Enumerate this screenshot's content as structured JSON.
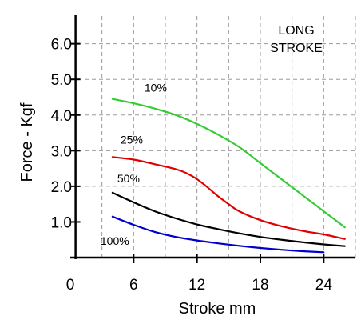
{
  "chart_data": {
    "type": "line",
    "title": "",
    "xlabel": "Stroke mm",
    "ylabel": "Force - Kgf",
    "xlim": [
      0,
      27
    ],
    "ylim": [
      0,
      6.8
    ],
    "x_ticks": [
      {
        "value": 0,
        "label": "0"
      },
      {
        "value": 6,
        "label": "6"
      },
      {
        "value": 12,
        "label": "12"
      },
      {
        "value": 18,
        "label": "18"
      },
      {
        "value": 24,
        "label": "24"
      }
    ],
    "y_ticks": [
      {
        "value": 1,
        "label": "1.0"
      },
      {
        "value": 2,
        "label": "2.0"
      },
      {
        "value": 3,
        "label": "3.0"
      },
      {
        "value": 4,
        "label": "4.0"
      },
      {
        "value": 5,
        "label": "5.0"
      },
      {
        "value": 6,
        "label": "6.0"
      }
    ],
    "grid_x": [
      3,
      6,
      9,
      12,
      15,
      18,
      21,
      24,
      27
    ],
    "grid_y": [
      1,
      2,
      3,
      4,
      5,
      6
    ],
    "grid": true,
    "annotation": [
      "LONG",
      "STROKE"
    ],
    "series": [
      {
        "name": "10%",
        "color": "#33cc33",
        "x": [
          4,
          6,
          8,
          10,
          12,
          14,
          16,
          18,
          20,
          22,
          24,
          26
        ],
        "y": [
          4.45,
          4.33,
          4.18,
          4.0,
          3.75,
          3.45,
          3.1,
          2.65,
          2.2,
          1.75,
          1.3,
          0.85
        ]
      },
      {
        "name": "25%",
        "color": "#e00000",
        "x": [
          4,
          6,
          8,
          10,
          11,
          12,
          13,
          14,
          15,
          16,
          18,
          20,
          22,
          24,
          26
        ],
        "y": [
          2.82,
          2.75,
          2.62,
          2.48,
          2.37,
          2.2,
          1.97,
          1.72,
          1.5,
          1.3,
          1.05,
          0.88,
          0.75,
          0.65,
          0.52
        ]
      },
      {
        "name": "50%",
        "color": "#000000",
        "x": [
          4,
          6,
          8,
          10,
          12,
          14,
          16,
          18,
          20,
          22,
          24,
          26
        ],
        "y": [
          1.82,
          1.55,
          1.3,
          1.1,
          0.93,
          0.8,
          0.68,
          0.58,
          0.5,
          0.43,
          0.37,
          0.32
        ]
      },
      {
        "name": "100%",
        "color": "#0000cc",
        "x": [
          4,
          6,
          8,
          10,
          12,
          14,
          16,
          18,
          20,
          22,
          24
        ],
        "y": [
          1.15,
          0.92,
          0.72,
          0.58,
          0.48,
          0.4,
          0.33,
          0.27,
          0.22,
          0.18,
          0.15
        ]
      }
    ]
  }
}
